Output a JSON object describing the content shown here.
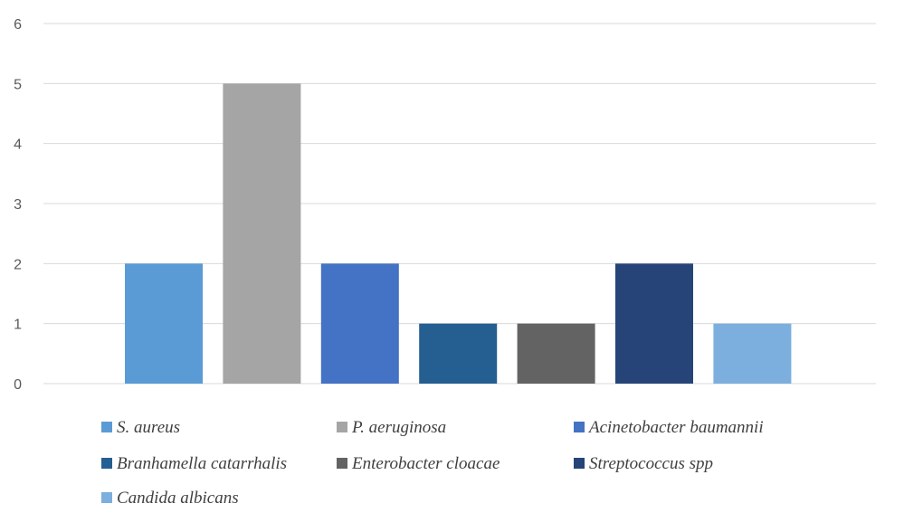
{
  "chart_data": {
    "type": "bar",
    "title": "",
    "xlabel": "",
    "ylabel": "",
    "ylim": [
      0,
      6
    ],
    "yticks": [
      0,
      1,
      2,
      3,
      4,
      5,
      6
    ],
    "grid": true,
    "legend_position": "bottom",
    "categories": [
      "S. aureus",
      "P. aeruginosa",
      "Acinetobacter baumannii",
      "Branhamella catarrhalis",
      "Enterobacter cloacae",
      "Streptococcus spp",
      "Candida albicans"
    ],
    "values": [
      2,
      5,
      2,
      1,
      1,
      2,
      1
    ],
    "colors": [
      "#5b9bd5",
      "#a5a5a5",
      "#4472c4",
      "#255e91",
      "#636363",
      "#264478",
      "#7cafdd"
    ]
  }
}
